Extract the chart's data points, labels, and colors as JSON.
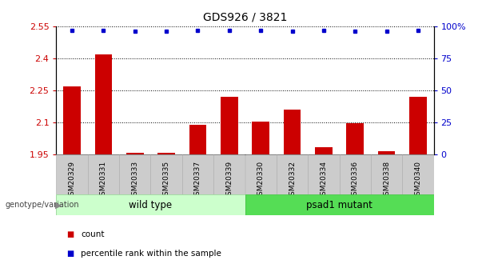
{
  "title": "GDS926 / 3821",
  "samples": [
    "GSM20329",
    "GSM20331",
    "GSM20333",
    "GSM20335",
    "GSM20337",
    "GSM20339",
    "GSM20330",
    "GSM20332",
    "GSM20334",
    "GSM20336",
    "GSM20338",
    "GSM20340"
  ],
  "counts": [
    2.27,
    2.42,
    1.957,
    1.957,
    2.09,
    2.22,
    2.105,
    2.16,
    1.983,
    2.095,
    1.967,
    2.22
  ],
  "percentile_ranks_pct": [
    97,
    97,
    96,
    96,
    97,
    97,
    97,
    96,
    97,
    96,
    96,
    97
  ],
  "ylim_left": [
    1.95,
    2.55
  ],
  "ylim_right": [
    0,
    100
  ],
  "yticks_left": [
    1.95,
    2.1,
    2.25,
    2.4,
    2.55
  ],
  "yticks_right": [
    0,
    25,
    50,
    75,
    100
  ],
  "ytick_labels_left": [
    "1.95",
    "2.1",
    "2.25",
    "2.4",
    "2.55"
  ],
  "ytick_labels_right": [
    "0",
    "25",
    "50",
    "75",
    "100%"
  ],
  "bar_color": "#cc0000",
  "dot_color": "#0000cc",
  "wild_type_label": "wild type",
  "mutant_label": "psad1 mutant",
  "group_label": "genotype/variation",
  "legend_count_label": "count",
  "legend_pct_label": "percentile rank within the sample",
  "wild_type_bg": "#ccffcc",
  "mutant_bg": "#55dd55",
  "header_bg": "#cccccc",
  "title_color": "#000000",
  "left_tick_color": "#cc0000",
  "right_tick_color": "#0000cc",
  "bar_bottom": 1.95,
  "n_wild": 6,
  "n_mutant": 6
}
